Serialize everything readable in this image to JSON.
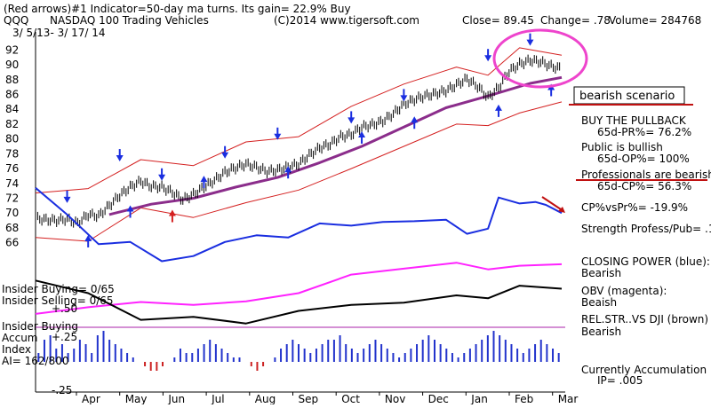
{
  "header": {
    "line1": "(Red arrows)#1 Indicator=50-day ma turns. Its gain= 22.9% Buy",
    "symbol": "QQQ",
    "name": "NASDAQ 100 Trading Vehicles",
    "copyright": "(C)2014 www.tigersoft.com",
    "close": "Close=  89.45",
    "change": "Change= .78",
    "volume": "Volume= 284768",
    "dates": "3/ 5/13- 3/ 17/ 14"
  },
  "chart_data": {
    "type": "line",
    "title": "NASDAQ 100 Trading Vehicles",
    "x_tick_labels": [
      "Apr",
      "May",
      "Jun",
      "Jul",
      "Aug",
      "Sep",
      "Oct",
      "Nov",
      "Dec",
      "Jan",
      "Feb",
      "Mar"
    ],
    "y_tick_labels": [
      "92",
      "90",
      "88",
      "86",
      "84",
      "82",
      "80",
      "78",
      "76",
      "74",
      "72",
      "70",
      "68",
      "66"
    ],
    "ylim": [
      65,
      93
    ],
    "close_path": [
      [
        0,
        69.3
      ],
      [
        0.02,
        69.1
      ],
      [
        0.04,
        69.0
      ],
      [
        0.06,
        69.2
      ],
      [
        0.08,
        68.6
      ],
      [
        0.1,
        69.8
      ],
      [
        0.12,
        69.6
      ],
      [
        0.14,
        71.0
      ],
      [
        0.16,
        72.4
      ],
      [
        0.18,
        73.5
      ],
      [
        0.2,
        74.3
      ],
      [
        0.22,
        73.6
      ],
      [
        0.24,
        73.5
      ],
      [
        0.26,
        72.8
      ],
      [
        0.28,
        71.8
      ],
      [
        0.3,
        72.5
      ],
      [
        0.32,
        73.5
      ],
      [
        0.34,
        74.4
      ],
      [
        0.36,
        75.5
      ],
      [
        0.38,
        76.1
      ],
      [
        0.4,
        76.6
      ],
      [
        0.42,
        76.2
      ],
      [
        0.44,
        75.6
      ],
      [
        0.46,
        75.8
      ],
      [
        0.48,
        76.2
      ],
      [
        0.5,
        76.6
      ],
      [
        0.52,
        77.8
      ],
      [
        0.54,
        78.8
      ],
      [
        0.56,
        79.3
      ],
      [
        0.58,
        80.3
      ],
      [
        0.6,
        80.6
      ],
      [
        0.62,
        81.6
      ],
      [
        0.64,
        81.9
      ],
      [
        0.66,
        82.4
      ],
      [
        0.68,
        83.4
      ],
      [
        0.7,
        84.7
      ],
      [
        0.72,
        85.3
      ],
      [
        0.74,
        85.8
      ],
      [
        0.76,
        86.1
      ],
      [
        0.78,
        86.5
      ],
      [
        0.8,
        87.3
      ],
      [
        0.82,
        88.1
      ],
      [
        0.84,
        87.1
      ],
      [
        0.86,
        85.6
      ],
      [
        0.88,
        86.9
      ],
      [
        0.9,
        89.1
      ],
      [
        0.92,
        90.1
      ],
      [
        0.94,
        90.6
      ],
      [
        0.96,
        90.4
      ],
      [
        0.98,
        89.8
      ],
      [
        1.0,
        89.45
      ]
    ],
    "ma50_path": [
      [
        0.14,
        69.8
      ],
      [
        0.22,
        71.2
      ],
      [
        0.3,
        72.0
      ],
      [
        0.38,
        73.5
      ],
      [
        0.46,
        74.8
      ],
      [
        0.54,
        76.8
      ],
      [
        0.62,
        79.0
      ],
      [
        0.7,
        81.6
      ],
      [
        0.78,
        84.2
      ],
      [
        0.86,
        85.8
      ],
      [
        0.94,
        87.5
      ],
      [
        1.0,
        88.3
      ]
    ],
    "upper_band_path": [
      [
        0,
        72.7
      ],
      [
        0.1,
        73.3
      ],
      [
        0.2,
        77.2
      ],
      [
        0.3,
        76.4
      ],
      [
        0.4,
        79.6
      ],
      [
        0.5,
        80.3
      ],
      [
        0.6,
        84.4
      ],
      [
        0.7,
        87.4
      ],
      [
        0.8,
        89.7
      ],
      [
        0.86,
        88.6
      ],
      [
        0.92,
        92.3
      ],
      [
        1.0,
        91.3
      ]
    ],
    "lower_band_path": [
      [
        0,
        66.7
      ],
      [
        0.1,
        66.2
      ],
      [
        0.2,
        70.7
      ],
      [
        0.3,
        69.4
      ],
      [
        0.4,
        71.4
      ],
      [
        0.5,
        73.1
      ],
      [
        0.6,
        76.0
      ],
      [
        0.7,
        79.0
      ],
      [
        0.8,
        82.0
      ],
      [
        0.86,
        81.8
      ],
      [
        0.92,
        83.5
      ],
      [
        1.0,
        85.0
      ]
    ],
    "closing_power_path": [
      [
        0,
        73.4
      ],
      [
        0.06,
        69.8
      ],
      [
        0.12,
        65.8
      ],
      [
        0.18,
        66.1
      ],
      [
        0.24,
        63.5
      ],
      [
        0.3,
        64.2
      ],
      [
        0.36,
        66.1
      ],
      [
        0.42,
        67.0
      ],
      [
        0.48,
        66.7
      ],
      [
        0.54,
        68.6
      ],
      [
        0.6,
        68.3
      ],
      [
        0.66,
        68.8
      ],
      [
        0.72,
        68.9
      ],
      [
        0.78,
        69.1
      ],
      [
        0.82,
        67.2
      ],
      [
        0.86,
        67.9
      ],
      [
        0.88,
        72.1
      ],
      [
        0.92,
        71.3
      ],
      [
        0.95,
        71.5
      ],
      [
        0.97,
        71.1
      ],
      [
        1.0,
        70.0
      ]
    ],
    "obv_path": [
      [
        0,
        56.4
      ],
      [
        0.1,
        57.3
      ],
      [
        0.2,
        58.0
      ],
      [
        0.3,
        57.6
      ],
      [
        0.4,
        58.1
      ],
      [
        0.5,
        59.2
      ],
      [
        0.6,
        61.7
      ],
      [
        0.7,
        62.5
      ],
      [
        0.8,
        63.3
      ],
      [
        0.86,
        62.4
      ],
      [
        0.92,
        62.9
      ],
      [
        1.0,
        63.1
      ]
    ],
    "relstr_path": [
      [
        0,
        60.9
      ],
      [
        0.1,
        59.2
      ],
      [
        0.2,
        55.6
      ],
      [
        0.3,
        56.0
      ],
      [
        0.4,
        55.1
      ],
      [
        0.5,
        56.8
      ],
      [
        0.6,
        57.6
      ],
      [
        0.7,
        57.9
      ],
      [
        0.8,
        58.9
      ],
      [
        0.86,
        58.5
      ],
      [
        0.92,
        60.2
      ],
      [
        1.0,
        59.8
      ]
    ],
    "accum_index_values": [
      2,
      5,
      6,
      3,
      4,
      2,
      3,
      5,
      4,
      2,
      6,
      7,
      5,
      4,
      3,
      2,
      1,
      0,
      -1,
      -2,
      -2,
      -1,
      0,
      1,
      3,
      2,
      2,
      3,
      4,
      5,
      4,
      3,
      2,
      1,
      1,
      0,
      -1,
      -2,
      -1,
      0,
      1,
      3,
      4,
      5,
      4,
      3,
      2,
      3,
      4,
      5,
      5,
      6,
      4,
      3,
      2,
      3,
      4,
      5,
      4,
      3,
      2,
      1,
      2,
      3,
      4,
      5,
      6,
      5,
      4,
      3,
      2,
      1,
      2,
      3,
      4,
      5,
      6,
      7,
      6,
      5,
      4,
      3,
      2,
      3,
      4,
      5,
      4,
      3,
      2
    ],
    "blue_up_arrow_points": [
      [
        0.1,
        66.8
      ],
      [
        0.18,
        70.8
      ],
      [
        0.32,
        74.8
      ],
      [
        0.48,
        76.1
      ],
      [
        0.62,
        80.8
      ],
      [
        0.72,
        82.8
      ],
      [
        0.88,
        84.4
      ],
      [
        0.98,
        87.2
      ]
    ],
    "blue_down_arrow_points": [
      [
        0.06,
        71.6
      ],
      [
        0.16,
        77.2
      ],
      [
        0.24,
        74.6
      ],
      [
        0.36,
        77.6
      ],
      [
        0.46,
        80.1
      ],
      [
        0.6,
        82.3
      ],
      [
        0.7,
        85.3
      ],
      [
        0.86,
        90.7
      ],
      [
        0.94,
        92.8
      ]
    ],
    "red_up_arrow_points": [
      [
        0.26,
        70.2
      ]
    ]
  },
  "indicators": {
    "insider_buying": "Insider Buying= 0/65",
    "insider_selling": "Insider Selling= 0/65",
    "plus_50": "+.50",
    "insider_buying2": "Insider Buying",
    "accum": "Accum",
    "plus_25": "+.25",
    "index": "Index",
    "ai": "AI= 162/800",
    "minus_25": "-.25"
  },
  "annotations": {
    "bearish_scenario": "bearish scenario",
    "buy_pullback": "BUY THE PULLBACK",
    "pr": "65d-PR%= 76.2%",
    "public": "Public is bullish",
    "op": "65d-OP%= 100%",
    "professionals": "Professionals are bearish",
    "cp": "65d-CP%= 56.3%",
    "cpvspr": "CP%vsPr%= -19.9%",
    "strength": "Strength Profess/Pub= .1",
    "closing_power": "CLOSING POWER (blue):",
    "cp_bearish": "Bearish",
    "obv": "OBV (magenta):",
    "obv_bearish": "Beaish",
    "relstr": "REL.STR..VS DJI (brown)",
    "relstr_bearish": "Bearish",
    "currently": "Currently Accumulation",
    "ip": "IP=  .005"
  },
  "colors": {
    "price": "#000000",
    "ma": "#8b2d8b",
    "band": "#d42020",
    "closing_power": "#1a2ee0",
    "obv": "#ff22ff",
    "relstr": "#000000",
    "accum_pos": "#2233cc",
    "accum_neg": "#cc2222",
    "circle": "#ee44cc"
  }
}
